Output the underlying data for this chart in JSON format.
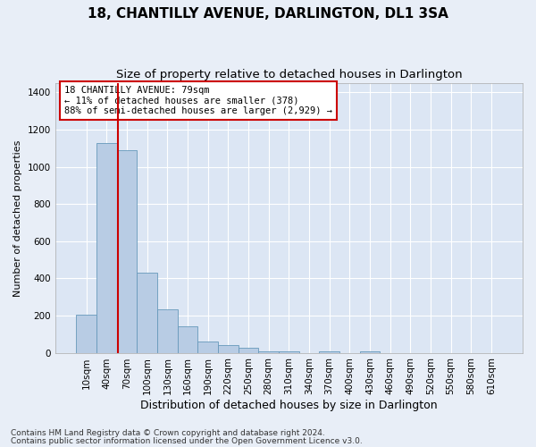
{
  "title": "18, CHANTILLY AVENUE, DARLINGTON, DL1 3SA",
  "subtitle": "Size of property relative to detached houses in Darlington",
  "xlabel": "Distribution of detached houses by size in Darlington",
  "ylabel": "Number of detached properties",
  "footnote1": "Contains HM Land Registry data © Crown copyright and database right 2024.",
  "footnote2": "Contains public sector information licensed under the Open Government Licence v3.0.",
  "bar_labels": [
    "10sqm",
    "40sqm",
    "70sqm",
    "100sqm",
    "130sqm",
    "160sqm",
    "190sqm",
    "220sqm",
    "250sqm",
    "280sqm",
    "310sqm",
    "340sqm",
    "370sqm",
    "400sqm",
    "430sqm",
    "460sqm",
    "490sqm",
    "520sqm",
    "550sqm",
    "580sqm",
    "610sqm"
  ],
  "bar_values": [
    205,
    1130,
    1090,
    430,
    235,
    140,
    60,
    40,
    25,
    10,
    10,
    0,
    10,
    0,
    10,
    0,
    0,
    0,
    0,
    0,
    0
  ],
  "bar_color": "#b8cce4",
  "bar_edgecolor": "#6699bb",
  "vline_x": 1.55,
  "vline_color": "#cc0000",
  "annotation_text": "18 CHANTILLY AVENUE: 79sqm\n← 11% of detached houses are smaller (378)\n88% of semi-detached houses are larger (2,929) →",
  "annotation_box_edgecolor": "#cc0000",
  "ylim": [
    0,
    1450
  ],
  "yticks": [
    0,
    200,
    400,
    600,
    800,
    1000,
    1200,
    1400
  ],
  "background_color": "#e8eef7",
  "plot_bg_color": "#dce6f4",
  "grid_color": "#ffffff",
  "title_fontsize": 11,
  "subtitle_fontsize": 9.5,
  "xlabel_fontsize": 9,
  "ylabel_fontsize": 8,
  "tick_fontsize": 7.5,
  "footnote_fontsize": 6.5
}
